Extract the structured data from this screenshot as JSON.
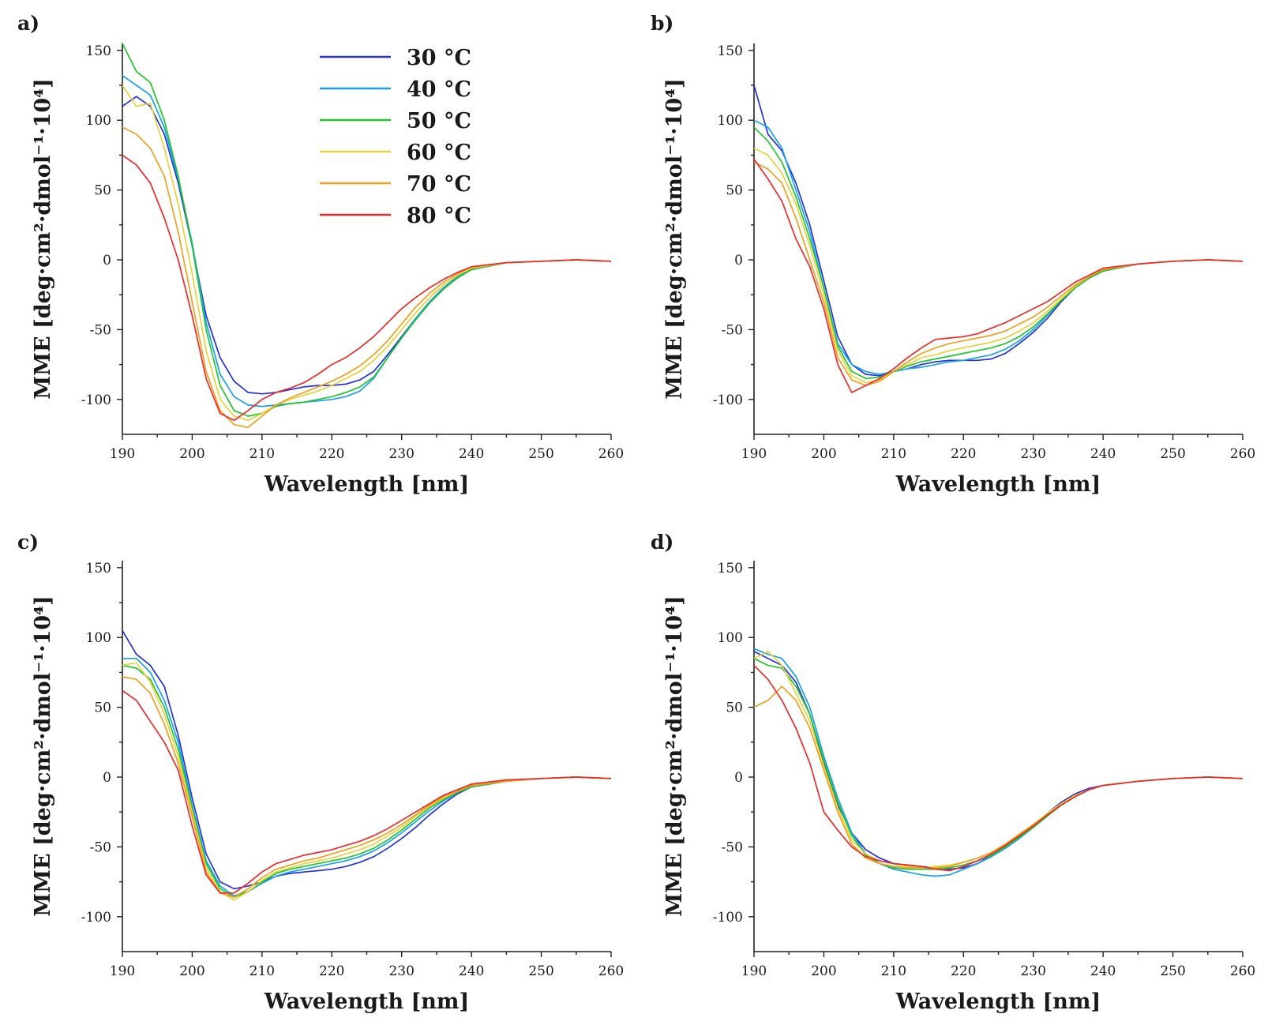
{
  "figure": {
    "panel_labels": [
      "a)",
      "b)",
      "c)",
      "d)"
    ],
    "legend": [
      {
        "label": "30 °C",
        "color": "#2233dd"
      },
      {
        "label": "40 °C",
        "color": "#1aa0f0"
      },
      {
        "label": "50 °C",
        "color": "#22c52a"
      },
      {
        "label": "60 °C",
        "color": "#e6d23c"
      },
      {
        "label": "70 °C",
        "color": "#f0a020"
      },
      {
        "label": "80 °C",
        "color": "#ee2a2a"
      }
    ]
  },
  "chart_data": [
    {
      "type": "line",
      "panel": "a)",
      "xlabel": "Wavelength [nm]",
      "ylabel": "MME [deg·cm²·dmol⁻¹·10⁴]",
      "xlim": [
        190,
        260
      ],
      "ylim": [
        -125,
        155
      ],
      "xticks": [
        190,
        200,
        210,
        220,
        230,
        240,
        250,
        260
      ],
      "yticks": [
        150,
        100,
        50,
        0,
        -50,
        -100
      ],
      "x": [
        190,
        192,
        194,
        196,
        198,
        200,
        202,
        204,
        206,
        208,
        210,
        212,
        214,
        216,
        218,
        220,
        222,
        224,
        226,
        228,
        230,
        232,
        234,
        236,
        238,
        240,
        245,
        250,
        255,
        260
      ],
      "series": [
        {
          "name": "30 °C",
          "values": [
            110,
            117,
            110,
            90,
            55,
            10,
            -40,
            -70,
            -87,
            -95,
            -96,
            -95,
            -93,
            -91,
            -90,
            -90,
            -89,
            -86,
            -80,
            -68,
            -55,
            -42,
            -30,
            -20,
            -12,
            -7,
            -2,
            -1,
            0,
            -1
          ]
        },
        {
          "name": "40 °C",
          "values": [
            132,
            125,
            118,
            95,
            58,
            12,
            -45,
            -82,
            -98,
            -104,
            -105,
            -104,
            -103,
            -102,
            -101,
            -100,
            -98,
            -94,
            -85,
            -70,
            -56,
            -42,
            -30,
            -20,
            -12,
            -7,
            -2,
            -1,
            0,
            -1
          ]
        },
        {
          "name": "50 °C",
          "values": [
            155,
            135,
            127,
            100,
            60,
            10,
            -50,
            -90,
            -108,
            -112,
            -110,
            -105,
            -103,
            -102,
            -100,
            -98,
            -95,
            -91,
            -84,
            -70,
            -56,
            -43,
            -31,
            -21,
            -13,
            -7,
            -2,
            -1,
            0,
            -1
          ]
        },
        {
          "name": "60 °C",
          "values": [
            125,
            110,
            112,
            80,
            40,
            -10,
            -65,
            -100,
            -112,
            -115,
            -110,
            -104,
            -100,
            -97,
            -94,
            -90,
            -85,
            -80,
            -72,
            -62,
            -50,
            -38,
            -27,
            -18,
            -11,
            -6,
            -2,
            -1,
            0,
            -1
          ]
        },
        {
          "name": "70 °C",
          "values": [
            95,
            90,
            80,
            60,
            20,
            -30,
            -80,
            -108,
            -118,
            -120,
            -112,
            -104,
            -99,
            -95,
            -91,
            -87,
            -82,
            -76,
            -68,
            -58,
            -46,
            -34,
            -24,
            -16,
            -10,
            -5,
            -2,
            -1,
            0,
            -1
          ]
        },
        {
          "name": "80 °C",
          "values": [
            75,
            68,
            55,
            30,
            0,
            -40,
            -85,
            -110,
            -115,
            -108,
            -100,
            -95,
            -92,
            -88,
            -82,
            -75,
            -70,
            -63,
            -55,
            -45,
            -35,
            -27,
            -20,
            -14,
            -9,
            -5,
            -2,
            -1,
            0,
            -1
          ]
        }
      ]
    },
    {
      "type": "line",
      "panel": "b)",
      "xlabel": "Wavelength [nm]",
      "ylabel": "MME [deg·cm²·dmol⁻¹·10⁴]",
      "xlim": [
        190,
        260
      ],
      "ylim": [
        -125,
        155
      ],
      "xticks": [
        190,
        200,
        210,
        220,
        230,
        240,
        250,
        260
      ],
      "yticks": [
        150,
        100,
        50,
        0,
        -50,
        -100
      ],
      "x": [
        190,
        192,
        194,
        196,
        198,
        200,
        202,
        204,
        206,
        208,
        210,
        212,
        214,
        216,
        218,
        220,
        222,
        224,
        226,
        228,
        230,
        232,
        234,
        236,
        238,
        240,
        245,
        250,
        255,
        260
      ],
      "series": [
        {
          "name": "30 °C",
          "values": [
            125,
            90,
            78,
            55,
            25,
            -15,
            -55,
            -75,
            -82,
            -83,
            -80,
            -78,
            -75,
            -73,
            -72,
            -72,
            -72,
            -71,
            -67,
            -60,
            -52,
            -42,
            -30,
            -20,
            -13,
            -8,
            -3,
            -1,
            0,
            -1
          ]
        },
        {
          "name": "40 °C",
          "values": [
            100,
            95,
            80,
            50,
            20,
            -20,
            -60,
            -75,
            -80,
            -82,
            -80,
            -78,
            -77,
            -75,
            -73,
            -72,
            -70,
            -68,
            -64,
            -58,
            -50,
            -40,
            -29,
            -20,
            -13,
            -8,
            -3,
            -1,
            0,
            -1
          ]
        },
        {
          "name": "50 °C",
          "values": [
            95,
            85,
            70,
            45,
            15,
            -20,
            -62,
            -80,
            -85,
            -84,
            -80,
            -76,
            -73,
            -71,
            -69,
            -67,
            -65,
            -63,
            -60,
            -55,
            -48,
            -39,
            -29,
            -20,
            -13,
            -8,
            -3,
            -1,
            0,
            -1
          ]
        },
        {
          "name": "60 °C",
          "values": [
            80,
            75,
            62,
            40,
            10,
            -25,
            -65,
            -83,
            -88,
            -86,
            -80,
            -75,
            -70,
            -68,
            -65,
            -63,
            -61,
            -59,
            -56,
            -51,
            -45,
            -37,
            -28,
            -19,
            -12,
            -7,
            -3,
            -1,
            0,
            -1
          ]
        },
        {
          "name": "70 °C",
          "values": [
            70,
            65,
            55,
            30,
            0,
            -30,
            -70,
            -86,
            -90,
            -87,
            -80,
            -73,
            -67,
            -63,
            -60,
            -58,
            -56,
            -54,
            -51,
            -46,
            -41,
            -34,
            -26,
            -18,
            -12,
            -7,
            -3,
            -1,
            0,
            -1
          ]
        },
        {
          "name": "80 °C",
          "values": [
            72,
            58,
            42,
            15,
            -5,
            -35,
            -75,
            -95,
            -90,
            -85,
            -78,
            -70,
            -63,
            -57,
            -56,
            -55,
            -53,
            -49,
            -45,
            -40,
            -35,
            -30,
            -23,
            -16,
            -11,
            -6,
            -3,
            -1,
            0,
            -1
          ]
        }
      ]
    },
    {
      "type": "line",
      "panel": "c)",
      "xlabel": "Wavelength [nm]",
      "ylabel": "MME [deg·cm²·dmol⁻¹·10⁴]",
      "xlim": [
        190,
        260
      ],
      "ylim": [
        -125,
        155
      ],
      "xticks": [
        190,
        200,
        210,
        220,
        230,
        240,
        250,
        260
      ],
      "yticks": [
        150,
        100,
        50,
        0,
        -50,
        -100
      ],
      "x": [
        190,
        192,
        194,
        196,
        198,
        200,
        202,
        204,
        206,
        208,
        210,
        212,
        214,
        216,
        218,
        220,
        222,
        224,
        226,
        228,
        230,
        232,
        234,
        236,
        238,
        240,
        245,
        250,
        255,
        260
      ],
      "series": [
        {
          "name": "30 °C",
          "values": [
            105,
            88,
            80,
            65,
            30,
            -15,
            -55,
            -75,
            -80,
            -78,
            -75,
            -71,
            -69,
            -68,
            -67,
            -66,
            -64,
            -61,
            -57,
            -51,
            -44,
            -36,
            -27,
            -19,
            -12,
            -7,
            -3,
            -1,
            0,
            -1
          ]
        },
        {
          "name": "40 °C",
          "values": [
            85,
            85,
            75,
            55,
            25,
            -20,
            -60,
            -78,
            -85,
            -82,
            -76,
            -71,
            -68,
            -66,
            -64,
            -62,
            -60,
            -57,
            -53,
            -47,
            -40,
            -32,
            -24,
            -17,
            -11,
            -7,
            -3,
            -1,
            0,
            -1
          ]
        },
        {
          "name": "50 °C",
          "values": [
            80,
            78,
            70,
            50,
            20,
            -22,
            -62,
            -80,
            -86,
            -82,
            -75,
            -69,
            -66,
            -64,
            -62,
            -60,
            -58,
            -55,
            -51,
            -45,
            -38,
            -30,
            -22,
            -16,
            -11,
            -7,
            -3,
            -1,
            0,
            -1
          ]
        },
        {
          "name": "60 °C",
          "values": [
            80,
            82,
            68,
            45,
            15,
            -25,
            -65,
            -82,
            -88,
            -82,
            -74,
            -68,
            -65,
            -62,
            -60,
            -58,
            -55,
            -52,
            -48,
            -42,
            -36,
            -28,
            -21,
            -15,
            -10,
            -6,
            -3,
            -1,
            0,
            -1
          ]
        },
        {
          "name": "70 °C",
          "values": [
            72,
            70,
            60,
            38,
            10,
            -28,
            -68,
            -83,
            -86,
            -80,
            -72,
            -66,
            -63,
            -60,
            -58,
            -55,
            -52,
            -49,
            -45,
            -40,
            -34,
            -27,
            -20,
            -14,
            -10,
            -6,
            -3,
            -1,
            0,
            -1
          ]
        },
        {
          "name": "80 °C",
          "values": [
            62,
            55,
            40,
            25,
            5,
            -35,
            -70,
            -83,
            -83,
            -76,
            -68,
            -62,
            -59,
            -56,
            -54,
            -52,
            -49,
            -46,
            -42,
            -37,
            -31,
            -25,
            -19,
            -13,
            -9,
            -5,
            -2,
            -1,
            0,
            -1
          ]
        }
      ]
    },
    {
      "type": "line",
      "panel": "d)",
      "xlabel": "Wavelength [nm]",
      "ylabel": "MME [deg·cm²·dmol⁻¹·10⁴]",
      "xlim": [
        190,
        260
      ],
      "ylim": [
        -125,
        155
      ],
      "xticks": [
        190,
        200,
        210,
        220,
        230,
        240,
        250,
        260
      ],
      "yticks": [
        150,
        100,
        50,
        0,
        -50,
        -100
      ],
      "x": [
        190,
        192,
        194,
        196,
        198,
        200,
        202,
        204,
        206,
        208,
        210,
        212,
        214,
        216,
        218,
        220,
        222,
        224,
        226,
        228,
        230,
        232,
        234,
        236,
        238,
        240,
        245,
        250,
        255,
        260
      ],
      "series": [
        {
          "name": "30 °C",
          "values": [
            90,
            85,
            80,
            68,
            45,
            10,
            -20,
            -40,
            -52,
            -58,
            -62,
            -63,
            -64,
            -65,
            -66,
            -65,
            -62,
            -56,
            -50,
            -43,
            -35,
            -26,
            -18,
            -12,
            -8,
            -6,
            -3,
            -1,
            0,
            -1
          ]
        },
        {
          "name": "40 °C",
          "values": [
            92,
            88,
            85,
            72,
            50,
            15,
            -15,
            -40,
            -55,
            -62,
            -66,
            -68,
            -70,
            -71,
            -70,
            -66,
            -62,
            -57,
            -51,
            -44,
            -36,
            -28,
            -20,
            -14,
            -9,
            -6,
            -3,
            -1,
            0,
            -1
          ]
        },
        {
          "name": "50 °C",
          "values": [
            85,
            80,
            78,
            65,
            45,
            12,
            -18,
            -42,
            -56,
            -62,
            -65,
            -66,
            -66,
            -66,
            -65,
            -63,
            -60,
            -56,
            -50,
            -43,
            -36,
            -28,
            -20,
            -14,
            -9,
            -6,
            -3,
            -1,
            0,
            -1
          ]
        },
        {
          "name": "60 °C",
          "values": [
            85,
            90,
            80,
            60,
            40,
            8,
            -22,
            -45,
            -55,
            -60,
            -62,
            -64,
            -65,
            -64,
            -63,
            -61,
            -58,
            -54,
            -48,
            -41,
            -34,
            -26,
            -19,
            -13,
            -9,
            -6,
            -3,
            -1,
            0,
            -1
          ]
        },
        {
          "name": "70 °C",
          "values": [
            50,
            55,
            65,
            55,
            35,
            5,
            -25,
            -48,
            -58,
            -62,
            -64,
            -65,
            -65,
            -65,
            -64,
            -61,
            -58,
            -54,
            -48,
            -41,
            -34,
            -27,
            -20,
            -14,
            -9,
            -6,
            -3,
            -1,
            0,
            -1
          ]
        },
        {
          "name": "80 °C",
          "values": [
            80,
            70,
            55,
            35,
            10,
            -25,
            -38,
            -50,
            -57,
            -60,
            -62,
            -63,
            -64,
            -66,
            -67,
            -64,
            -60,
            -55,
            -49,
            -42,
            -35,
            -27,
            -20,
            -14,
            -9,
            -6,
            -3,
            -1,
            0,
            -1
          ]
        }
      ]
    }
  ]
}
